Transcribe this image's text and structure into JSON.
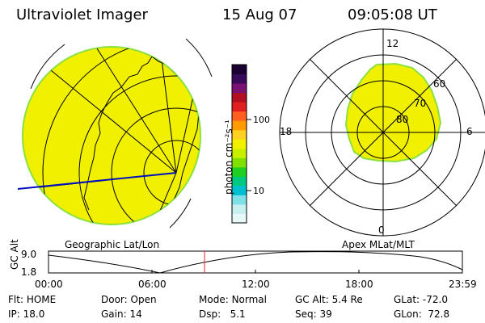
{
  "header": {
    "instrument": "Ultraviolet Imager",
    "date": "15 Aug 07",
    "time": "09:05:08 UT"
  },
  "colorbar": {
    "unit_label": "photon cm⁻²s⁻¹",
    "ticks": [
      "100",
      "10"
    ],
    "colors": [
      "#1a0030",
      "#3a0a5a",
      "#7a1070",
      "#b01020",
      "#e02020",
      "#ff6020",
      "#ff9a00",
      "#ffd020",
      "#f0f000",
      "#c8f000",
      "#80e000",
      "#20d020",
      "#00c880",
      "#00c0d0",
      "#80e0e8",
      "#c8f0f0",
      "#e8f8f8"
    ]
  },
  "left_panel": {
    "caption": "Geographic Lat/Lon",
    "fill_color": "#f0f000",
    "edge_color": "#8ce040"
  },
  "right_panel": {
    "caption": "Apex MLat/MLT",
    "mlt_labels": {
      "top": "12",
      "left": "18",
      "right": "6",
      "bottom": "0"
    },
    "lat_labels": [
      "60",
      "70",
      "80"
    ],
    "fill_color": "#f0f000"
  },
  "altitude_plot": {
    "ylabel": "GC Alt",
    "yticks": [
      "9.0",
      "1.8"
    ],
    "xticks": [
      "00:00",
      "06:00",
      "12:00",
      "18:00",
      "23:59"
    ],
    "marker_color": "#e02020"
  },
  "status": {
    "row1": [
      {
        "key": "Flt:",
        "value": "HOME"
      },
      {
        "key": "Door:",
        "value": "Open"
      },
      {
        "key": "Mode:",
        "value": "Normal"
      },
      {
        "key": "GC Alt:",
        "value": "5.4 Re"
      },
      {
        "key": "GLat:",
        "value": "-72.0"
      }
    ],
    "row2": [
      {
        "key": "IP:",
        "value": "18.0"
      },
      {
        "key": "Gain:",
        "value": "14"
      },
      {
        "key": "Dsp:",
        "value": "5.1"
      },
      {
        "key": "Seq:",
        "value": "39"
      },
      {
        "key": "GLon:",
        "value": "72.8"
      }
    ]
  }
}
